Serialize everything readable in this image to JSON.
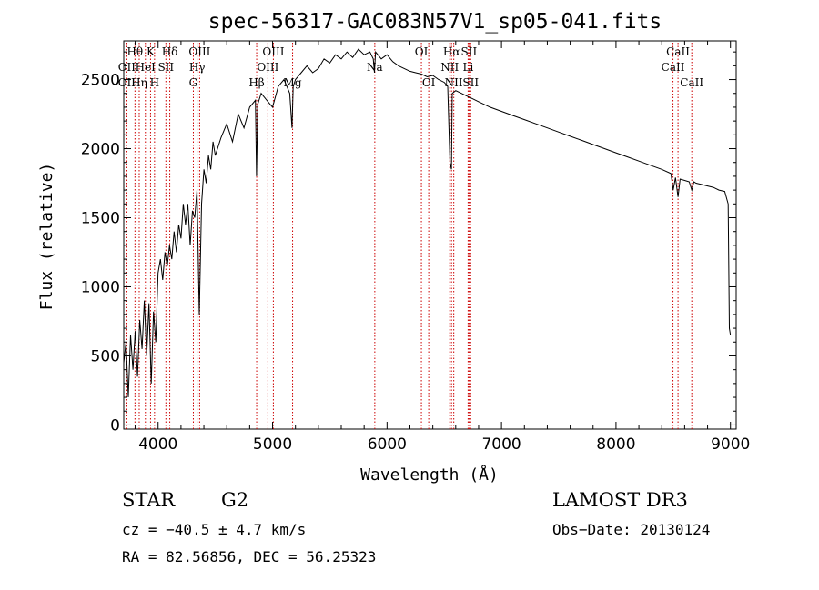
{
  "chart_data": {
    "type": "line",
    "title": "spec-56317-GAC083N57V1_sp05-041.fits",
    "xlabel": "Wavelength (Å)",
    "ylabel": "Flux (relative)",
    "xlim": [
      3700,
      9050
    ],
    "ylim": [
      -30,
      2780
    ],
    "x_ticks": [
      4000,
      5000,
      6000,
      7000,
      8000,
      9000
    ],
    "y_ticks": [
      0,
      500,
      1000,
      1500,
      2000,
      2500
    ],
    "series": [
      {
        "name": "flux",
        "x": [
          3700,
          3720,
          3740,
          3760,
          3780,
          3800,
          3820,
          3840,
          3860,
          3880,
          3900,
          3920,
          3940,
          3960,
          3980,
          4000,
          4020,
          4040,
          4060,
          4080,
          4100,
          4120,
          4140,
          4160,
          4180,
          4200,
          4220,
          4240,
          4260,
          4280,
          4300,
          4320,
          4340,
          4360,
          4380,
          4400,
          4420,
          4440,
          4460,
          4480,
          4500,
          4550,
          4600,
          4650,
          4700,
          4750,
          4800,
          4850,
          4860,
          4870,
          4900,
          4950,
          5000,
          5050,
          5100,
          5150,
          5170,
          5180,
          5200,
          5250,
          5300,
          5350,
          5400,
          5450,
          5500,
          5550,
          5600,
          5650,
          5700,
          5750,
          5800,
          5850,
          5880,
          5890,
          5900,
          5950,
          6000,
          6050,
          6100,
          6150,
          6200,
          6250,
          6300,
          6350,
          6400,
          6450,
          6500,
          6530,
          6550,
          6563,
          6570,
          6600,
          6650,
          6700,
          6750,
          6800,
          6900,
          7000,
          7100,
          7200,
          7300,
          7400,
          7500,
          7600,
          7700,
          7800,
          7900,
          8000,
          8100,
          8200,
          8300,
          8400,
          8480,
          8500,
          8520,
          8542,
          8560,
          8600,
          8640,
          8662,
          8680,
          8700,
          8750,
          8800,
          8850,
          8900,
          8950,
          8980,
          8990,
          9000
        ],
        "y": [
          450,
          600,
          200,
          650,
          400,
          680,
          350,
          760,
          550,
          900,
          500,
          880,
          300,
          820,
          600,
          1100,
          1200,
          1050,
          1250,
          1150,
          1300,
          1200,
          1400,
          1250,
          1450,
          1350,
          1600,
          1450,
          1600,
          1300,
          1550,
          1500,
          1700,
          800,
          1600,
          1850,
          1750,
          1950,
          1850,
          2050,
          1950,
          2080,
          2180,
          2050,
          2250,
          2150,
          2300,
          2350,
          1800,
          2320,
          2400,
          2350,
          2300,
          2450,
          2500,
          2400,
          2150,
          2450,
          2500,
          2550,
          2600,
          2550,
          2580,
          2650,
          2620,
          2680,
          2650,
          2700,
          2660,
          2720,
          2680,
          2700,
          2650,
          2550,
          2700,
          2650,
          2680,
          2630,
          2600,
          2580,
          2560,
          2550,
          2540,
          2520,
          2530,
          2500,
          2480,
          2450,
          1900,
          1850,
          2400,
          2420,
          2400,
          2380,
          2360,
          2340,
          2300,
          2270,
          2240,
          2210,
          2180,
          2150,
          2120,
          2090,
          2060,
          2030,
          2000,
          1970,
          1940,
          1910,
          1880,
          1850,
          1820,
          1700,
          1790,
          1650,
          1780,
          1770,
          1760,
          1700,
          1760,
          1750,
          1740,
          1730,
          1720,
          1700,
          1690,
          1600,
          700,
          650
        ]
      }
    ],
    "line_markers": [
      {
        "label": "Hθ",
        "wavelength": 3798,
        "row": 1
      },
      {
        "label": "OII",
        "wavelength": 3727,
        "row": 2
      },
      {
        "label": "OII",
        "wavelength": 3727,
        "row": 3
      },
      {
        "label": "K",
        "wavelength": 3934,
        "row": 1
      },
      {
        "label": "HeI",
        "wavelength": 3889,
        "row": 2
      },
      {
        "label": "Hη",
        "wavelength": 3835,
        "row": 3
      },
      {
        "label": "SII",
        "wavelength": 4068,
        "row": 2
      },
      {
        "label": "H",
        "wavelength": 3969,
        "row": 3
      },
      {
        "label": "Hδ",
        "wavelength": 4102,
        "row": 1
      },
      {
        "label": "OIII",
        "wavelength": 4363,
        "row": 1
      },
      {
        "label": "Hγ",
        "wavelength": 4341,
        "row": 2
      },
      {
        "label": "G",
        "wavelength": 4308,
        "row": 3
      },
      {
        "label": "Hβ",
        "wavelength": 4861,
        "row": 3
      },
      {
        "label": "OIII",
        "wavelength": 5007,
        "row": 1
      },
      {
        "label": "OIII",
        "wavelength": 4959,
        "row": 2
      },
      {
        "label": "Mg",
        "wavelength": 5175,
        "row": 3
      },
      {
        "label": "Na",
        "wavelength": 5893,
        "row": 2
      },
      {
        "label": "OI",
        "wavelength": 6300,
        "row": 1
      },
      {
        "label": "OI",
        "wavelength": 6364,
        "row": 3
      },
      {
        "label": "Hα",
        "wavelength": 6563,
        "row": 1
      },
      {
        "label": "SII",
        "wavelength": 6716,
        "row": 1
      },
      {
        "label": "NII",
        "wavelength": 6548,
        "row": 2
      },
      {
        "label": "Li",
        "wavelength": 6708,
        "row": 2
      },
      {
        "label": "NII",
        "wavelength": 6583,
        "row": 3
      },
      {
        "label": "SII",
        "wavelength": 6731,
        "row": 3
      },
      {
        "label": "CaII",
        "wavelength": 8542,
        "row": 1
      },
      {
        "label": "CaII",
        "wavelength": 8498,
        "row": 2
      },
      {
        "label": "CaII",
        "wavelength": 8662,
        "row": 3
      }
    ],
    "colors": {
      "line": "#000000",
      "marker": "#cc0000",
      "axis": "#000000"
    }
  },
  "info": {
    "object_class": "STAR",
    "subclass": "G2",
    "survey": "LAMOST DR3",
    "redshift": "cz = −40.5 ± 4.7 km/s",
    "obs_date": "Obs−Date: 20130124",
    "coords": "RA =  82.56856, DEC =  56.25323"
  }
}
